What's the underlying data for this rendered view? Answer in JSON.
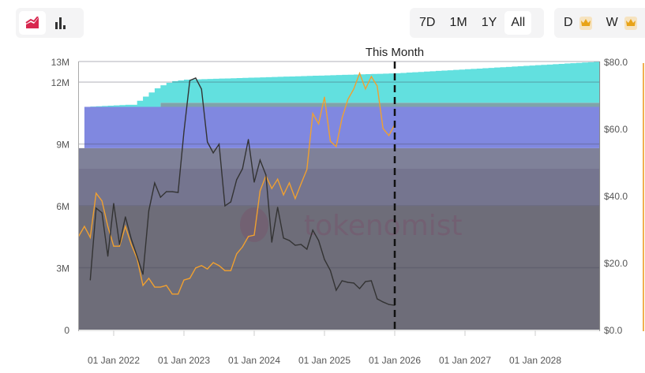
{
  "toolbar": {
    "chart_types": [
      {
        "icon": "area-chart-icon",
        "active": true
      },
      {
        "icon": "bar-chart-icon",
        "active": false
      }
    ],
    "ranges": [
      {
        "label": "7D",
        "active": false
      },
      {
        "label": "1M",
        "active": false
      },
      {
        "label": "1Y",
        "active": false
      },
      {
        "label": "All",
        "active": true
      }
    ],
    "granularity": [
      {
        "label": "D",
        "icon": "crown-icon"
      },
      {
        "label": "W",
        "icon": "crown-icon"
      }
    ],
    "accent": "#d8284f",
    "crown_color": "#e8a317"
  },
  "watermark": "tokenomist",
  "chart_data": {
    "type": "area",
    "marker_label": "This Month",
    "marker_date": "2026-01",
    "x_range": [
      "2021-07",
      "2028-12"
    ],
    "x_ticks": [
      "01 Jan 2022",
      "01 Jan 2023",
      "01 Jan 2024",
      "01 Jan 2025",
      "01 Jan 2026",
      "01 Jan 2027",
      "01 Jan 2028"
    ],
    "y_left": {
      "range": [
        0,
        13
      ],
      "ticks": [
        "0",
        "3M",
        "6M",
        "9M",
        "12M",
        "13M"
      ],
      "tick_values": [
        0,
        3,
        6,
        9,
        12,
        13
      ]
    },
    "y_right": {
      "range": [
        0,
        80
      ],
      "ticks": [
        "$0.0",
        "$20.0",
        "$40.0",
        "$60.0",
        "$80.0"
      ],
      "tick_values": [
        0,
        20,
        40,
        60,
        80
      ],
      "color": "#f0a030"
    },
    "grid": true,
    "stacked_areas": [
      {
        "color": "#6e6d79",
        "points": [
          [
            "2021-07",
            6
          ],
          [
            "2028-12",
            6
          ]
        ]
      },
      {
        "color": "#75758f",
        "points": [
          [
            "2021-07",
            1.8
          ],
          [
            "2028-12",
            1.8
          ]
        ]
      },
      {
        "color": "#7f8199",
        "points": [
          [
            "2021-07",
            1.0
          ],
          [
            "2028-12",
            1.0
          ]
        ]
      },
      {
        "color": "#8088e0",
        "points": [
          [
            "2021-08",
            2.0
          ],
          [
            "2028-12",
            2.0
          ]
        ]
      },
      {
        "color": "#7fa3aa",
        "points": [
          [
            "2022-09",
            0.2
          ],
          [
            "2028-12",
            0.2
          ]
        ]
      },
      {
        "color": "#62e0df",
        "points": [
          [
            "2021-08",
            0
          ],
          [
            "2022-03",
            0.1
          ],
          [
            "2022-04",
            0.1
          ],
          [
            "2022-05",
            0.3
          ],
          [
            "2022-06",
            0.5
          ],
          [
            "2022-07",
            0.7
          ],
          [
            "2022-08",
            0.9
          ],
          [
            "2022-09",
            0.85
          ],
          [
            "2022-10",
            0.97
          ],
          [
            "2022-11",
            1.05
          ],
          [
            "2022-12",
            1.08
          ],
          [
            "2023-01",
            1.12
          ],
          [
            "2026-01",
            1.43
          ],
          [
            "2028-12",
            2.0
          ]
        ]
      }
    ],
    "lines": [
      {
        "color": "#f0a030",
        "axis": "right",
        "start": "2021-07",
        "values": [
          27.8,
          30.8,
          27.5,
          40.7,
          38.4,
          30.8,
          24.9,
          24.9,
          30.8,
          25.4,
          21.2,
          13.2,
          15.3,
          12.7,
          12.7,
          13.2,
          10.6,
          10.6,
          14.8,
          15.3,
          18.4,
          19.1,
          18.1,
          20.0,
          19.1,
          17.6,
          17.6,
          22.6,
          24.7,
          27.8,
          28.2,
          41.4,
          45.9,
          42.1,
          44.9,
          40.2,
          43.8,
          39.1,
          43.5,
          47.8,
          64.5,
          61.4,
          69.4,
          56.2,
          54.6,
          63.1,
          68.7,
          71.8,
          76.5,
          71.8,
          75.5,
          72.7,
          60.0,
          57.9,
          61.2
        ]
      },
      {
        "color": "#333333",
        "axis": "left",
        "start": "2021-09",
        "values": [
          2.41,
          5.89,
          5.66,
          3.56,
          6.12,
          4.13,
          5.47,
          4.4,
          3.56,
          2.68,
          5.77,
          7.11,
          6.42,
          6.69,
          6.69,
          6.65,
          9.6,
          12.08,
          12.2,
          11.66,
          9.1,
          8.57,
          8.99,
          6.0,
          6.19,
          7.27,
          7.8,
          9.22,
          7.15,
          8.22,
          7.5,
          4.24,
          5.93,
          4.44,
          4.32,
          4.09,
          4.13,
          3.9,
          4.82,
          4.32,
          3.4,
          2.87,
          1.91,
          2.37,
          2.29,
          2.26,
          1.99,
          2.33,
          2.37,
          1.49,
          1.34,
          1.22,
          1.18
        ]
      }
    ]
  }
}
